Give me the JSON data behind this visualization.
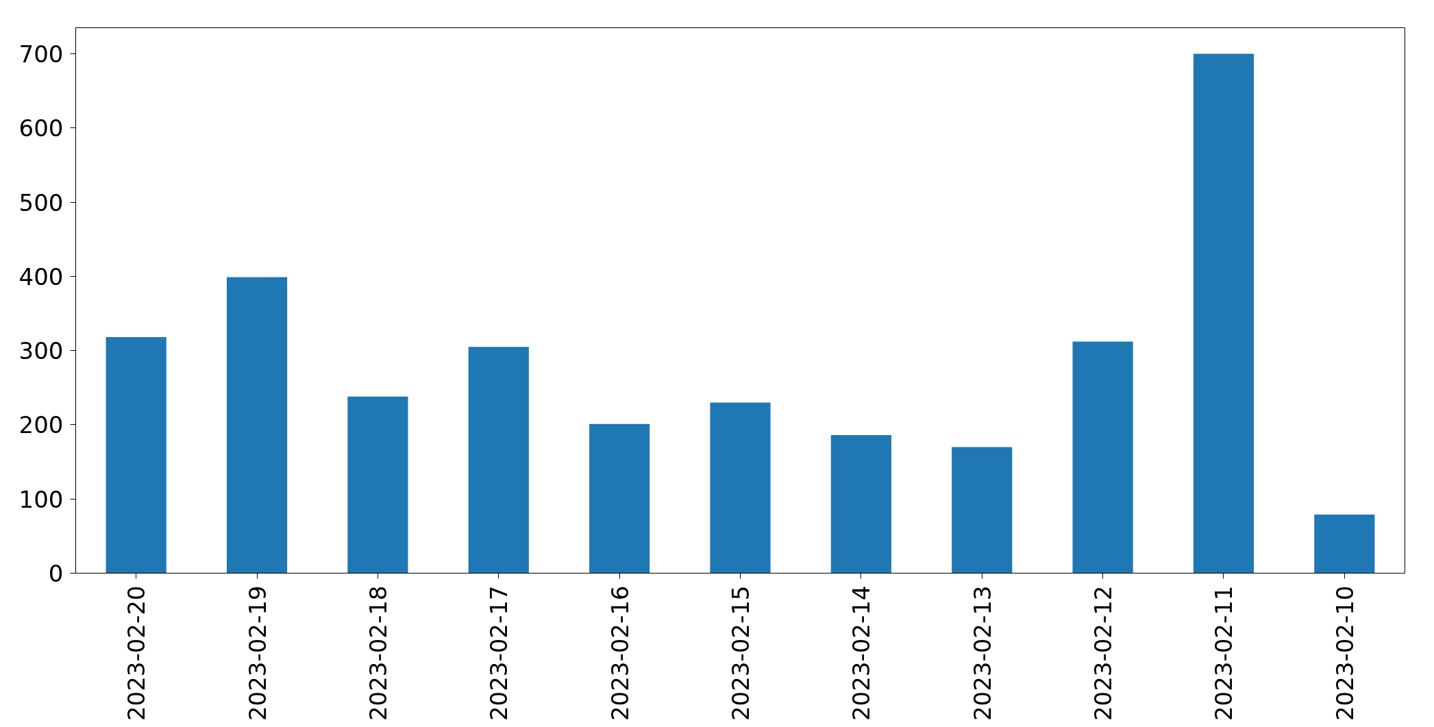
{
  "chart_data": {
    "type": "bar",
    "categories": [
      "2023-02-20",
      "2023-02-19",
      "2023-02-18",
      "2023-02-17",
      "2023-02-16",
      "2023-02-15",
      "2023-02-14",
      "2023-02-13",
      "2023-02-12",
      "2023-02-11",
      "2023-02-10"
    ],
    "values": [
      318,
      399,
      238,
      305,
      201,
      230,
      186,
      170,
      312,
      700,
      79
    ],
    "color": "#1f77b4",
    "ylim": [
      0,
      735
    ],
    "yticks": [
      0,
      100,
      200,
      300,
      400,
      500,
      600,
      700
    ],
    "grid": false
  }
}
